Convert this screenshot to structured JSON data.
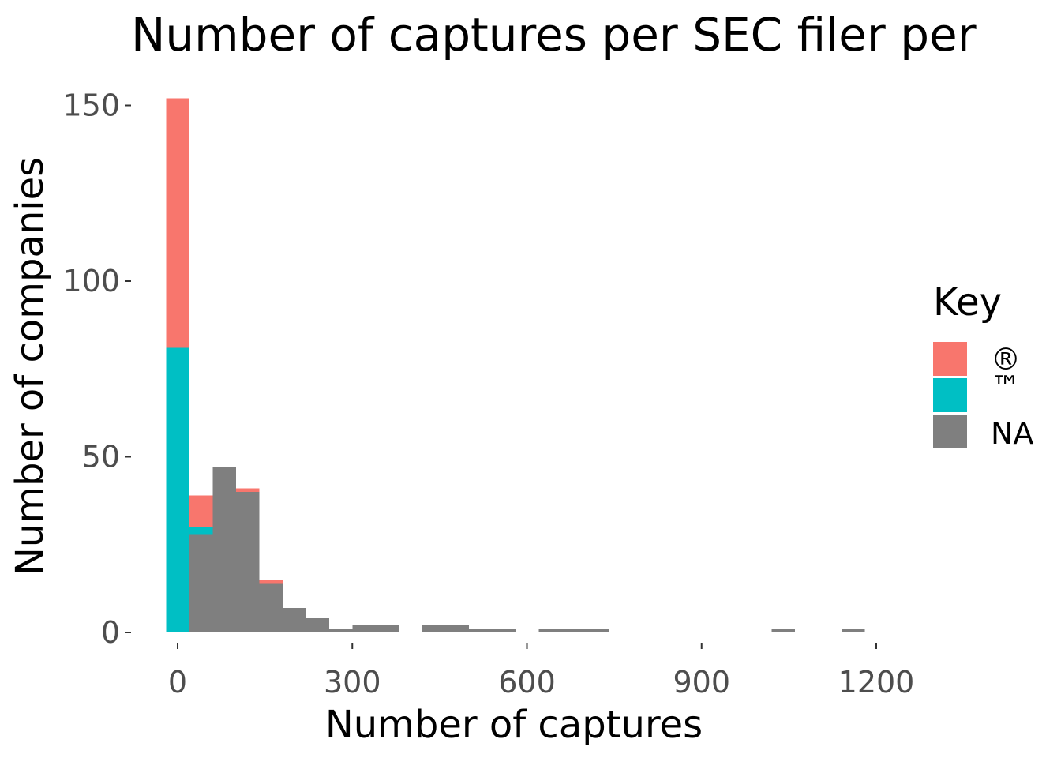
{
  "chart_data": {
    "type": "bar",
    "stacked": true,
    "title": "Number of captures per SEC filer per",
    "xlabel": "Number of captures",
    "ylabel": "Number of companies",
    "xlim": [
      -40,
      1370
    ],
    "ylim": [
      0,
      152
    ],
    "x_ticks": [
      0,
      300,
      600,
      900,
      1200
    ],
    "x_tick_labels": [
      "0",
      "300",
      "600",
      "900",
      "1200"
    ],
    "y_ticks": [
      0,
      50,
      100,
      150
    ],
    "y_tick_labels": [
      "0",
      "50",
      "100",
      "150"
    ],
    "bin_width": 40,
    "bin_centers": [
      0,
      40,
      80,
      120,
      160,
      200,
      240,
      280,
      320,
      360,
      440,
      480,
      520,
      560,
      640,
      680,
      720,
      1040,
      1160
    ],
    "series": [
      {
        "name": "NA",
        "color": "#7f7f7f",
        "values": [
          0,
          28,
          47,
          40,
          14,
          7,
          4,
          1,
          2,
          2,
          2,
          2,
          1,
          1,
          1,
          1,
          1,
          1,
          1
        ]
      },
      {
        "name": "™",
        "color": "#00bfc4",
        "values": [
          81,
          2,
          0,
          0,
          0,
          0,
          0,
          0,
          0,
          0,
          0,
          0,
          0,
          0,
          0,
          0,
          0,
          0,
          0
        ]
      },
      {
        "name": "®",
        "color": "#f8766d",
        "values": [
          71,
          9,
          0,
          1,
          1,
          0,
          0,
          0,
          0,
          0,
          0,
          0,
          0,
          0,
          0,
          0,
          0,
          0,
          0
        ]
      }
    ],
    "grid": false,
    "legend": {
      "title": "Key",
      "placement": "right",
      "entries": [
        {
          "label": "®",
          "color": "#f8766d"
        },
        {
          "label": "™",
          "color": "#00bfc4"
        },
        {
          "label": "NA",
          "color": "#7f7f7f"
        }
      ]
    }
  }
}
